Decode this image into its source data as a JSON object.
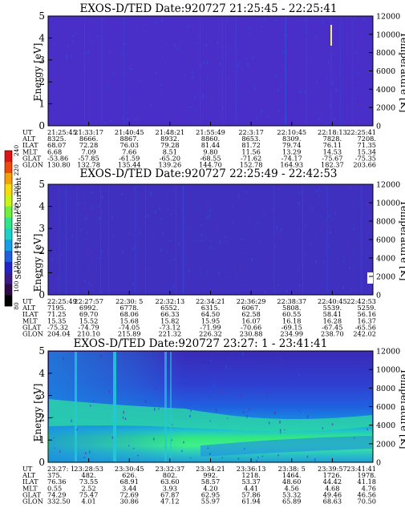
{
  "colorbar": {
    "label": "Second Harmonic Current",
    "ticks": [
      "80",
      "100",
      "120",
      "140",
      "160",
      "180",
      "200",
      "220",
      "240"
    ],
    "colors": [
      "#000000",
      "#2e0a46",
      "#3d1a8c",
      "#2323c8",
      "#1f5fe0",
      "#14a0e6",
      "#19d2c8",
      "#2de68c",
      "#6ef03c",
      "#c8f514",
      "#f5dc0a",
      "#f5a00a",
      "#ee4a0a",
      "#dc1414"
    ]
  },
  "chart_data": [
    {
      "type": "heatmap",
      "title": "EXOS-D/TED   Date:920727  21:25:45 - 22:25:41",
      "ylabel": "Energy [eV]",
      "y2label": "Temperature [K]",
      "ylim": [
        0,
        5
      ],
      "y2lim": [
        0,
        12000
      ],
      "yticks": [
        "0",
        "1",
        "2",
        "3",
        "4",
        "5"
      ],
      "y2ticks": [
        "0",
        "2000",
        "4000",
        "6000",
        "8000",
        "10000",
        "12000"
      ],
      "background": "#4a2ec8",
      "row_labels": [
        "UT",
        "ALT",
        "ILAT",
        "MLT",
        "GLAT",
        "GLON"
      ],
      "columns": [
        [
          "21:25:45",
          "8325.",
          "68.07",
          "6.68",
          "-53.86",
          "130.80"
        ],
        [
          "21:33:17",
          "8666.",
          "72.28",
          "7.09",
          "-57.85",
          "132.78"
        ],
        [
          "21:40:45",
          "8867.",
          "76.03",
          "7.66",
          "-61.59",
          "135.44"
        ],
        [
          "21:48:21",
          "8932.",
          "79.28",
          "8.51",
          "-65.20",
          "139.26"
        ],
        [
          "21:55:49",
          "8860.",
          "81.44",
          "9.80",
          "-68.55",
          "144.70"
        ],
        [
          "22:3:17",
          "8653.",
          "81.72",
          "11.56",
          "-71.62",
          "152.78"
        ],
        [
          "22:10:45",
          "8309.",
          "79.74",
          "13.29",
          "-74.17",
          "164.93"
        ],
        [
          "22:18:13",
          "7828.",
          "76.11",
          "14.53",
          "-75.67",
          "182.37"
        ],
        [
          "22:25:41",
          "7208.",
          "71.35",
          "15.34",
          "-75.35",
          "203.66"
        ]
      ]
    },
    {
      "type": "heatmap",
      "title": "EXOS-D/TED   Date:920727  22:25:49 - 22:42:53",
      "ylabel": "Energy [eV]",
      "y2label": "Temperature [K]",
      "ylim": [
        0,
        5
      ],
      "y2lim": [
        0,
        12000
      ],
      "yticks": [
        "0",
        "1",
        "2",
        "3",
        "4",
        "5"
      ],
      "y2ticks": [
        "0",
        "2000",
        "4000",
        "6000",
        "8000",
        "10000",
        "12000"
      ],
      "background": "#4030c0",
      "row_labels": [
        "UT",
        "ALT",
        "ILAT",
        "MLT",
        "GLAT",
        "GLON"
      ],
      "columns": [
        [
          "22:25:49",
          "7195.",
          "71.25",
          "15.35",
          "-75.32",
          "204.04"
        ],
        [
          "22:27:57",
          "6992.",
          "69.70",
          "15.52",
          "-74.79",
          "210.10"
        ],
        [
          "22:30: 5",
          "6778.",
          "68.06",
          "15.68",
          "-74.05",
          "215.89"
        ],
        [
          "22:32:13",
          "6552.",
          "66.33",
          "15.82",
          "-73.12",
          "221.32"
        ],
        [
          "22:34:21",
          "6315.",
          "64.50",
          "15.95",
          "-71.99",
          "226.32"
        ],
        [
          "22:36:29",
          "6067.",
          "62.58",
          "16.07",
          "-70.66",
          "230.88"
        ],
        [
          "22:38:37",
          "5808.",
          "60.55",
          "16.18",
          "-69.15",
          "234.99"
        ],
        [
          "22:40:45",
          "5539.",
          "58.41",
          "16.28",
          "-67.45",
          "238.70"
        ],
        [
          "22:42:53",
          "5259.",
          "56.16",
          "16.37",
          "-65.56",
          "242.02"
        ]
      ]
    },
    {
      "type": "heatmap",
      "title": "EXOS-D/TED   Date:920727  23:27: 1 - 23:41:41",
      "ylabel": "Energy [eV]",
      "y2label": "Temperature [K]",
      "ylim": [
        0,
        5
      ],
      "y2lim": [
        0,
        12000
      ],
      "yticks": [
        "0",
        "1",
        "2",
        "3",
        "4",
        "5"
      ],
      "y2ticks": [
        "0",
        "2000",
        "4000",
        "6000",
        "8000",
        "10000",
        "12000"
      ],
      "background": "#3a2ab8",
      "row_labels": [
        "UT",
        "ALT",
        "ILAT",
        "MLT",
        "GLAT",
        "GLON"
      ],
      "columns": [
        [
          "23:27: 1",
          "375.",
          "76.36",
          "0.55",
          "74.29",
          "332.50"
        ],
        [
          "23:28:53",
          "482.",
          "73.55",
          "2.52",
          "75.47",
          "4.01"
        ],
        [
          "23:30:45",
          "626.",
          "68.91",
          "3.44",
          "72.69",
          "30.86"
        ],
        [
          "23:32:37",
          "802.",
          "63.60",
          "3.93",
          "67.87",
          "47.12"
        ],
        [
          "23:34:21",
          "992.",
          "58.57",
          "4.20",
          "62.95",
          "55.97"
        ],
        [
          "23:36:13",
          "1218.",
          "53.37",
          "4.41",
          "57.86",
          "61.94"
        ],
        [
          "23:38: 5",
          "1464.",
          "48.60",
          "4.56",
          "53.32",
          "65.89"
        ],
        [
          "23:39:57",
          "1726.",
          "44.42",
          "4.68",
          "49.46",
          "68.63"
        ],
        [
          "23:41:41",
          "1978.",
          "41.18",
          "4.76",
          "46.56",
          "70.50"
        ]
      ]
    }
  ]
}
